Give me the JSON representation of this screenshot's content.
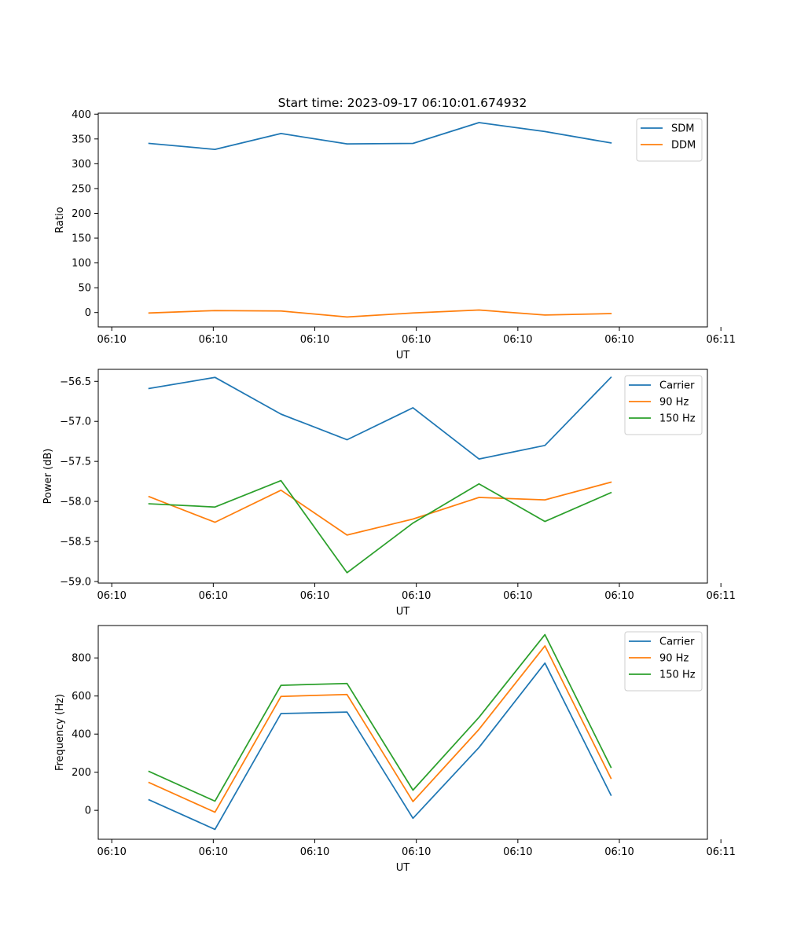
{
  "figure": {
    "title": "Start time: 2023-09-17 06:10:01.674932"
  },
  "chart_data": [
    {
      "type": "line",
      "title": "Start time: 2023-09-17 06:10:01.674932",
      "xlabel": "UT",
      "ylabel": "Ratio",
      "x_tick_labels": [
        "06:10",
        "06:10",
        "06:10",
        "06:10",
        "06:10",
        "06:10",
        "06:11"
      ],
      "y_ticks": [
        0,
        50,
        100,
        150,
        200,
        250,
        300,
        350,
        400
      ],
      "y_tick_labels": [
        "0",
        "50",
        "100",
        "150",
        "200",
        "250",
        "300",
        "350",
        "400"
      ],
      "xlim": [
        0,
        6
      ],
      "ylim": [
        -29,
        402
      ],
      "x": [
        0.5,
        1.15,
        1.8,
        2.45,
        3.1,
        3.75,
        4.4,
        5.05
      ],
      "series": [
        {
          "name": "SDM",
          "color": "#1f77b4",
          "values": [
            341,
            329,
            361,
            340,
            341,
            383,
            365,
            342
          ]
        },
        {
          "name": "DDM",
          "color": "#ff7f0e",
          "values": [
            -1,
            4,
            3,
            -9,
            -1,
            5,
            -5,
            -2
          ]
        }
      ],
      "legend": "top-right",
      "grid": false
    },
    {
      "type": "line",
      "title": "",
      "xlabel": "UT",
      "ylabel": "Power (dB)",
      "x_tick_labels": [
        "06:10",
        "06:10",
        "06:10",
        "06:10",
        "06:10",
        "06:10",
        "06:11"
      ],
      "y_ticks": [
        -59.0,
        -58.5,
        -58.0,
        -57.5,
        -57.0,
        -56.5
      ],
      "y_tick_labels": [
        "−59.0",
        "−58.5",
        "−58.0",
        "−57.5",
        "−57.0",
        "−56.5"
      ],
      "xlim": [
        0,
        6
      ],
      "ylim": [
        -59.02,
        -56.35
      ],
      "x": [
        0.5,
        1.15,
        1.8,
        2.45,
        3.1,
        3.75,
        4.4,
        5.05
      ],
      "series": [
        {
          "name": "Carrier",
          "color": "#1f77b4",
          "values": [
            -56.59,
            -56.45,
            -56.91,
            -57.23,
            -56.83,
            -57.47,
            -57.3,
            -56.45
          ]
        },
        {
          "name": "90 Hz",
          "color": "#ff7f0e",
          "values": [
            -57.94,
            -58.26,
            -57.86,
            -58.42,
            -58.22,
            -57.95,
            -57.98,
            -57.76
          ]
        },
        {
          "name": "150 Hz",
          "color": "#2ca02c",
          "values": [
            -58.03,
            -58.07,
            -57.74,
            -58.89,
            -58.27,
            -57.78,
            -58.25,
            -57.89
          ]
        }
      ],
      "legend": "top-right",
      "grid": false
    },
    {
      "type": "line",
      "title": "",
      "xlabel": "UT",
      "ylabel": "Frequency (Hz)",
      "x_tick_labels": [
        "06:10",
        "06:10",
        "06:10",
        "06:10",
        "06:10",
        "06:10",
        "06:11"
      ],
      "y_ticks": [
        0,
        200,
        400,
        600,
        800
      ],
      "y_tick_labels": [
        "0",
        "200",
        "400",
        "600",
        "800"
      ],
      "xlim": [
        0,
        6
      ],
      "ylim": [
        -152,
        970
      ],
      "x": [
        0.5,
        1.15,
        1.8,
        2.45,
        3.1,
        3.75,
        4.4,
        5.05
      ],
      "series": [
        {
          "name": "Carrier",
          "color": "#1f77b4",
          "values": [
            55,
            -100,
            508,
            516,
            -42,
            330,
            773,
            80
          ]
        },
        {
          "name": "90 Hz",
          "color": "#ff7f0e",
          "values": [
            146,
            -10,
            598,
            608,
            46,
            425,
            863,
            168
          ]
        },
        {
          "name": "150 Hz",
          "color": "#2ca02c",
          "values": [
            204,
            48,
            656,
            666,
            106,
            488,
            922,
            226
          ]
        }
      ],
      "legend": "top-right",
      "grid": false
    }
  ]
}
